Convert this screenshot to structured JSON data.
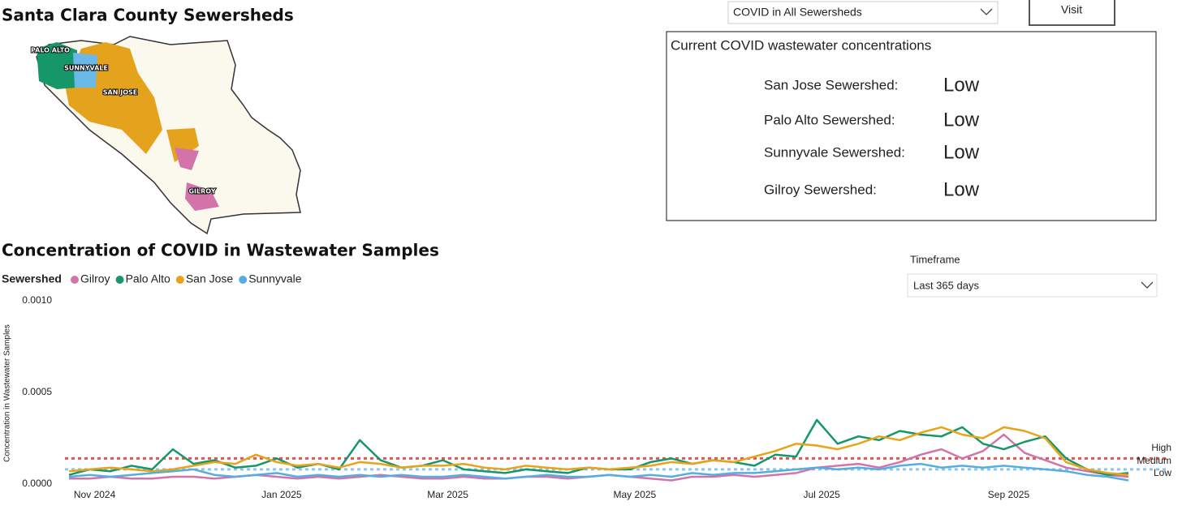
{
  "map": {
    "title": "Santa Clara County Sewersheds",
    "labels": [
      "PALO ALTO",
      "SUNNYVALE",
      "SAN JOSE",
      "GILROY"
    ]
  },
  "selector": {
    "value": "COVID in All Sewersheds"
  },
  "visit_button": "Visit",
  "status": {
    "title": "Current COVID wastewater concentrations",
    "rows": [
      {
        "name": "San Jose Sewershed:",
        "level": "Low"
      },
      {
        "name": "Palo Alto Sewershed:",
        "level": "Low"
      },
      {
        "name": "Sunnyvale Sewershed:",
        "level": "Low"
      },
      {
        "name": "Gilroy Sewershed:",
        "level": "Low"
      }
    ]
  },
  "timeframe": {
    "label": "Timeframe",
    "value": "Last 365 days"
  },
  "chart_data": {
    "type": "line",
    "title": "Concentration of COVID in Wastewater Samples",
    "y_label": "Concentration in Wastewater Samples",
    "legend_title": "Sewershed",
    "categories": [
      null,
      "Nov 2024",
      null,
      null,
      null,
      null,
      null,
      null,
      null,
      null,
      "Jan 2025",
      null,
      null,
      null,
      null,
      null,
      null,
      null,
      "Mar 2025",
      null,
      null,
      null,
      null,
      null,
      null,
      null,
      null,
      "May 2025",
      null,
      null,
      null,
      null,
      null,
      null,
      null,
      null,
      "Jul 2025",
      null,
      null,
      null,
      null,
      null,
      null,
      null,
      null,
      "Sep 2025",
      null,
      null,
      null,
      null,
      null,
      null
    ],
    "ylim": [
      0,
      0.001
    ],
    "yticks": [
      {
        "value": 0,
        "label": "0.0000"
      },
      {
        "value": 0.0005,
        "label": "0.0005"
      },
      {
        "value": 0.001,
        "label": "0.0010"
      }
    ],
    "series": [
      {
        "name": "Gilroy",
        "color": "#d274aa",
        "values": [
          3e-05,
          3e-05,
          4e-05,
          3e-05,
          3e-05,
          4e-05,
          4e-05,
          3e-05,
          4e-05,
          5e-05,
          4e-05,
          3e-05,
          4e-05,
          3e-05,
          4e-05,
          5e-05,
          4e-05,
          3e-05,
          3e-05,
          4e-05,
          3e-05,
          3e-05,
          4e-05,
          4e-05,
          3e-05,
          4e-05,
          5e-05,
          4e-05,
          3e-05,
          2e-05,
          4e-05,
          4e-05,
          5e-05,
          4e-05,
          5e-05,
          6e-05,
          9e-05,
          0.0001,
          0.00011,
          9e-05,
          0.00012,
          0.00016,
          0.00019,
          0.00014,
          0.00018,
          0.00027,
          0.00017,
          0.00013,
          9e-05,
          7e-05,
          5e-05,
          4e-05
        ]
      },
      {
        "name": "Palo Alto",
        "color": "#16976a",
        "values": [
          5e-05,
          8e-05,
          7e-05,
          0.0001,
          8e-05,
          0.00019,
          0.00011,
          0.00013,
          9e-05,
          0.0001,
          0.00014,
          9e-05,
          0.00011,
          8e-05,
          0.00024,
          0.00013,
          9e-05,
          0.0001,
          0.00013,
          8e-05,
          7e-05,
          6e-05,
          8e-05,
          7e-05,
          6e-05,
          9e-05,
          8e-05,
          8e-05,
          0.00012,
          0.00014,
          0.00011,
          0.00013,
          0.00012,
          0.0001,
          0.00016,
          0.00015,
          0.00035,
          0.00022,
          0.00026,
          0.00024,
          0.00029,
          0.00027,
          0.00026,
          0.00031,
          0.00022,
          0.00019,
          0.00023,
          0.00026,
          0.00014,
          8e-05,
          5e-05,
          6e-05
        ]
      },
      {
        "name": "San Jose",
        "color": "#e8a31a",
        "values": [
          7e-05,
          8e-05,
          9e-05,
          8e-05,
          7e-05,
          8e-05,
          0.0001,
          0.00012,
          0.00011,
          0.00016,
          0.00012,
          0.0001,
          0.00011,
          9e-05,
          0.00012,
          0.00011,
          9e-05,
          0.0001,
          0.0001,
          0.00011,
          9e-05,
          8e-05,
          0.0001,
          9e-05,
          8e-05,
          9e-05,
          8e-05,
          9e-05,
          0.0001,
          0.00012,
          0.00011,
          0.00013,
          0.00012,
          0.00015,
          0.00018,
          0.00022,
          0.00021,
          0.00019,
          0.00022,
          0.00026,
          0.00024,
          0.00028,
          0.00031,
          0.00027,
          0.00025,
          0.00031,
          0.00029,
          0.00025,
          0.00012,
          8e-05,
          6e-05,
          5e-05
        ]
      },
      {
        "name": "Sunnyvale",
        "color": "#56ade0",
        "values": [
          4e-05,
          5e-05,
          4e-05,
          5e-05,
          6e-05,
          7e-05,
          8e-05,
          5e-05,
          4e-05,
          5e-05,
          6e-05,
          4e-05,
          5e-05,
          4e-05,
          5e-05,
          4e-05,
          5e-05,
          4e-05,
          4e-05,
          5e-05,
          4e-05,
          3e-05,
          4e-05,
          5e-05,
          4e-05,
          4e-05,
          5e-05,
          4e-05,
          5e-05,
          4e-05,
          6e-05,
          5e-05,
          6e-05,
          6e-05,
          7e-05,
          8e-05,
          9e-05,
          8e-05,
          9e-05,
          8e-05,
          0.0001,
          0.00011,
          9e-05,
          0.0001,
          9e-05,
          0.0001,
          9e-05,
          8e-05,
          7e-05,
          5e-05,
          4e-05,
          2e-05
        ]
      }
    ],
    "reference_lines": [
      {
        "value": 0.00014,
        "color": "#e05555"
      },
      {
        "value": 8e-05,
        "color": "#8ec5ee"
      }
    ],
    "threshold_labels": [
      {
        "text": "High",
        "color": "#e0603a"
      },
      {
        "text": "Medium",
        "color": "#e0603a"
      },
      {
        "text": "Low",
        "color": "#3a8fd0"
      }
    ]
  }
}
